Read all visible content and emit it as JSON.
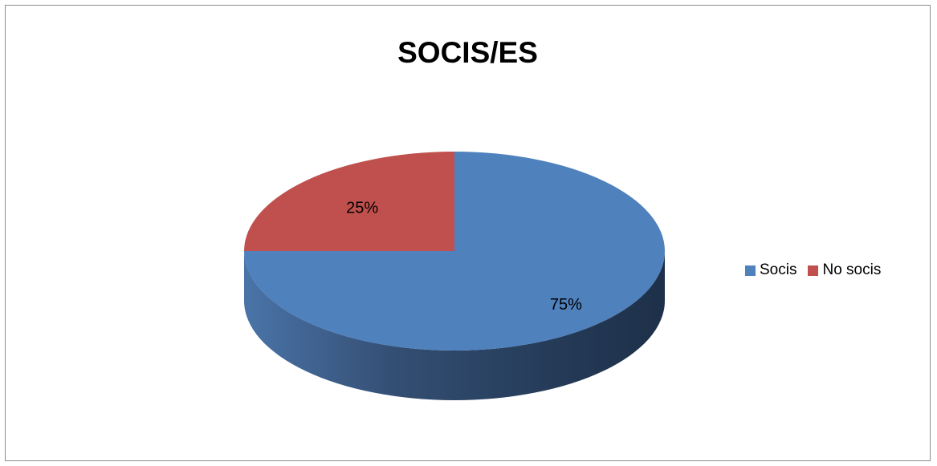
{
  "chart_data": {
    "type": "pie",
    "title": "SOCIS/ES",
    "slices": [
      {
        "label": "Socis",
        "value": 75,
        "data_label": "75%",
        "color": "#4f81bd"
      },
      {
        "label": "No socis",
        "value": 25,
        "data_label": "25%",
        "color": "#c0504d"
      }
    ],
    "style": "3d",
    "legend_position": "right"
  }
}
